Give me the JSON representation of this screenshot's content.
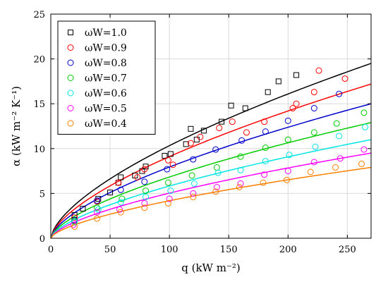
{
  "chart_data": {
    "type": "scatter",
    "title": "",
    "xlabel": "q (kW m⁻²)",
    "ylabel": "α (kW m⁻² K⁻¹)",
    "xlim": [
      0,
      270
    ],
    "ylim": [
      0,
      25
    ],
    "xticks": [
      0,
      50,
      100,
      150,
      200,
      250
    ],
    "yticks": [
      0,
      5,
      10,
      15,
      20,
      25
    ],
    "grid": true,
    "legend_position": "top-left",
    "series": [
      {
        "name": "ωW=1.0",
        "symbol": "square",
        "color": "#000000",
        "x": [
          20,
          27,
          40,
          50,
          57,
          59,
          71,
          77,
          80,
          96,
          101,
          114,
          118,
          123,
          129,
          144,
          152,
          164,
          183,
          192,
          207
        ],
        "y": [
          2.6,
          3.3,
          4.4,
          5.1,
          6.2,
          6.8,
          7.0,
          7.5,
          8.0,
          9.2,
          9.4,
          10.5,
          12.2,
          11.0,
          12.0,
          13.0,
          14.8,
          14.5,
          16.3,
          17.5,
          18.2
        ],
        "fit_x": [
          0,
          270
        ],
        "fit_y": [
          0,
          19.5
        ],
        "fit_exponent": 0.64
      },
      {
        "name": "ωW=0.9",
        "symbol": "circle",
        "color": "#ff0000",
        "x": [
          20,
          39,
          57,
          73,
          79,
          99,
          103,
          118,
          126,
          142,
          153,
          165,
          180,
          204,
          207,
          222,
          226,
          248
        ],
        "y": [
          2.3,
          4.1,
          6.2,
          6.8,
          7.7,
          8.7,
          8.2,
          10.6,
          11.3,
          12.3,
          13.0,
          11.8,
          13.0,
          14.5,
          15.0,
          16.3,
          18.7,
          17.8
        ],
        "fit_x": [
          0,
          270
        ],
        "fit_y": [
          0,
          17.2
        ],
        "fit_exponent": 0.64
      },
      {
        "name": "ωW=0.8",
        "symbol": "circle",
        "color": "#0000cc",
        "x": [
          20,
          39,
          59,
          79,
          98,
          120,
          139,
          161,
          181,
          200,
          222,
          243
        ],
        "y": [
          2.0,
          4.2,
          5.4,
          6.3,
          7.7,
          8.8,
          9.9,
          10.9,
          11.9,
          13.1,
          14.5,
          16.1
        ],
        "fit_x": [
          0,
          270
        ],
        "fit_y": [
          0,
          15.0
        ],
        "fit_exponent": 0.64
      },
      {
        "name": "ωW=0.7",
        "symbol": "circle",
        "color": "#00cc00",
        "x": [
          20,
          39,
          60,
          80,
          99,
          119,
          140,
          160,
          181,
          200,
          222,
          241,
          264
        ],
        "y": [
          1.9,
          3.4,
          4.4,
          5.3,
          6.2,
          7.0,
          7.9,
          9.1,
          10.1,
          11.0,
          11.8,
          12.8,
          14.0
        ],
        "fit_x": [
          0,
          270
        ],
        "fit_y": [
          0,
          12.9
        ],
        "fit_exponent": 0.64
      },
      {
        "name": "ωW=0.6",
        "symbol": "circle",
        "color": "#00e5e5",
        "x": [
          20,
          40,
          59,
          80,
          101,
          121,
          141,
          160,
          181,
          201,
          223,
          243,
          265
        ],
        "y": [
          1.8,
          3.2,
          4.0,
          4.6,
          5.3,
          6.1,
          7.3,
          7.6,
          8.6,
          9.3,
          10.2,
          11.4,
          12.4
        ],
        "fit_x": [
          0,
          270
        ],
        "fit_y": [
          0,
          11.0
        ],
        "fit_exponent": 0.64
      },
      {
        "name": "ωW=0.5",
        "symbol": "circle",
        "color": "#ff00ff",
        "x": [
          19,
          39,
          58,
          79,
          100,
          120,
          140,
          160,
          180,
          200,
          222,
          244,
          264
        ],
        "y": [
          1.5,
          2.9,
          3.2,
          3.9,
          4.4,
          5.0,
          5.7,
          6.1,
          7.1,
          7.5,
          8.5,
          8.9,
          9.9
        ],
        "fit_x": [
          0,
          270
        ],
        "fit_y": [
          0,
          9.5
        ],
        "fit_exponent": 0.64
      },
      {
        "name": "ωW=0.4",
        "symbol": "circle",
        "color": "#ff7f00",
        "x": [
          20,
          39,
          59,
          79,
          99,
          120,
          139,
          159,
          179,
          199,
          219,
          240,
          262
        ],
        "y": [
          1.3,
          2.2,
          2.9,
          3.4,
          3.9,
          4.6,
          5.2,
          5.7,
          6.2,
          6.5,
          7.4,
          7.9,
          8.3
        ],
        "fit_x": [
          0,
          270
        ],
        "fit_y": [
          0,
          7.9
        ],
        "fit_exponent": 0.64
      }
    ]
  }
}
